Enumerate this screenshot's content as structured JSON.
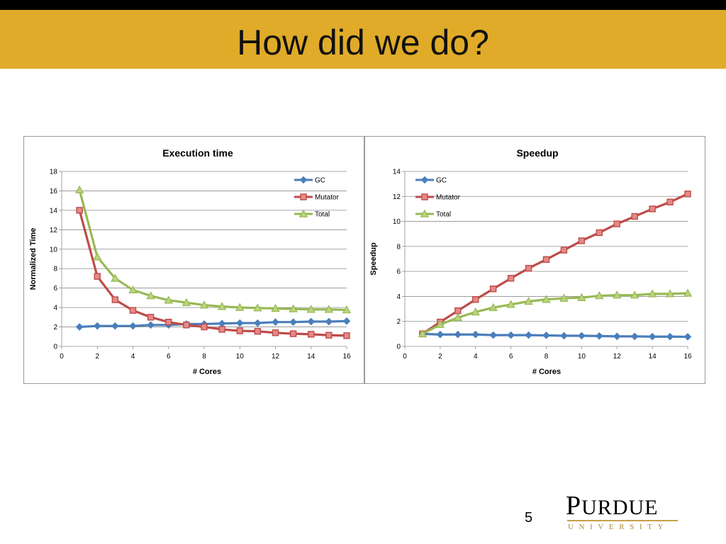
{
  "slide": {
    "title": "How did we do?",
    "page_number": "5",
    "logo": {
      "name": "PURDUE",
      "subtitle": "UNIVERSITY",
      "accent_color": "#c5a04a"
    },
    "colors": {
      "title_bar": "#e0ab28",
      "top_strip": "#000000"
    }
  },
  "chart_data": [
    {
      "type": "line",
      "title": "Execution time",
      "xlabel": "# Cores",
      "ylabel": "Normalized Time",
      "xlim": [
        0,
        16
      ],
      "ylim": [
        0,
        18
      ],
      "xticks": [
        0,
        2,
        4,
        6,
        8,
        10,
        12,
        14,
        16
      ],
      "yticks": [
        0,
        2,
        4,
        6,
        8,
        10,
        12,
        14,
        16,
        18
      ],
      "grid": true,
      "legend": "right",
      "x": [
        1,
        2,
        3,
        4,
        5,
        6,
        7,
        8,
        9,
        10,
        11,
        12,
        13,
        14,
        15,
        16
      ],
      "series": [
        {
          "name": "GC",
          "marker": "diamond",
          "color": "#4a7ebb",
          "values": [
            2.0,
            2.1,
            2.1,
            2.1,
            2.2,
            2.2,
            2.3,
            2.3,
            2.35,
            2.4,
            2.4,
            2.5,
            2.5,
            2.55,
            2.55,
            2.6
          ]
        },
        {
          "name": "Mutator",
          "marker": "square",
          "color": "#be4b48",
          "values": [
            14.0,
            7.2,
            4.8,
            3.7,
            3.0,
            2.5,
            2.2,
            2.0,
            1.75,
            1.6,
            1.55,
            1.4,
            1.3,
            1.25,
            1.15,
            1.1
          ]
        },
        {
          "name": "Total",
          "marker": "triangle",
          "color": "#98b954",
          "values": [
            16.1,
            9.2,
            7.0,
            5.8,
            5.2,
            4.75,
            4.5,
            4.25,
            4.1,
            4.0,
            3.95,
            3.9,
            3.85,
            3.8,
            3.8,
            3.75
          ]
        }
      ]
    },
    {
      "type": "line",
      "title": "Speedup",
      "xlabel": "# Cores",
      "ylabel": "Speedup",
      "xlim": [
        0,
        16
      ],
      "ylim": [
        0,
        14
      ],
      "xticks": [
        0,
        2,
        4,
        6,
        8,
        10,
        12,
        14,
        16
      ],
      "yticks": [
        0,
        2,
        4,
        6,
        8,
        10,
        12,
        14
      ],
      "grid": true,
      "legend": "top-left",
      "x": [
        1,
        2,
        3,
        4,
        5,
        6,
        7,
        8,
        9,
        10,
        11,
        12,
        13,
        14,
        15,
        16
      ],
      "series": [
        {
          "name": "GC",
          "marker": "diamond",
          "color": "#4a7ebb",
          "values": [
            1.0,
            0.95,
            0.95,
            0.95,
            0.9,
            0.9,
            0.9,
            0.88,
            0.85,
            0.85,
            0.83,
            0.8,
            0.8,
            0.78,
            0.78,
            0.77
          ]
        },
        {
          "name": "Mutator",
          "marker": "square",
          "color": "#be4b48",
          "values": [
            1.0,
            1.95,
            2.85,
            3.75,
            4.6,
            5.45,
            6.25,
            6.95,
            7.7,
            8.45,
            9.1,
            9.8,
            10.4,
            11.0,
            11.55,
            12.2
          ]
        },
        {
          "name": "Total",
          "marker": "triangle",
          "color": "#98b954",
          "values": [
            1.0,
            1.75,
            2.3,
            2.75,
            3.1,
            3.35,
            3.6,
            3.75,
            3.85,
            3.9,
            4.05,
            4.1,
            4.1,
            4.2,
            4.2,
            4.25
          ]
        }
      ]
    }
  ]
}
